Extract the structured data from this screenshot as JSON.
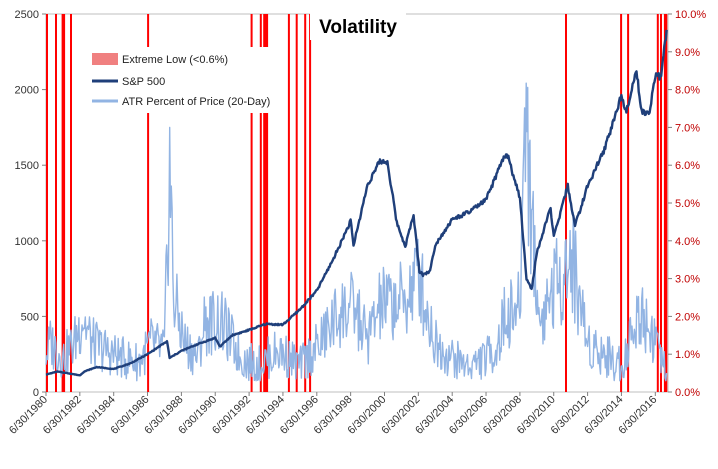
{
  "chart_data": {
    "type": "line",
    "title": "Volatility",
    "x_start": "1980-06-30",
    "x_end": "2017-03-31",
    "x_tick_labels": [
      "6/30/1980",
      "6/30/1982",
      "6/30/1984",
      "6/30/1986",
      "6/30/1988",
      "6/30/1990",
      "6/30/1992",
      "6/30/1994",
      "6/30/1996",
      "6/30/1998",
      "6/30/2000",
      "6/30/2002",
      "6/30/2004",
      "6/30/2006",
      "6/30/2008",
      "6/30/2010",
      "6/30/2012",
      "6/30/2014",
      "6/30/2016"
    ],
    "y_left": {
      "min": 0,
      "max": 2500,
      "ticks": [
        0,
        500,
        1000,
        1500,
        2000,
        2500
      ]
    },
    "y_right": {
      "min": 0,
      "max": 10,
      "ticks": [
        "0.0%",
        "1.0%",
        "2.0%",
        "3.0%",
        "4.0%",
        "5.0%",
        "6.0%",
        "7.0%",
        "8.0%",
        "9.0%",
        "10.0%"
      ]
    },
    "legend": [
      {
        "label": "Extreme Low (<0.6%)",
        "color": "#f08080",
        "kind": "box"
      },
      {
        "label": "S&P 500",
        "color": "#1f3f7a",
        "kind": "line"
      },
      {
        "label": "ATR Percent of Price (20-Day)",
        "color": "#92b4e3",
        "kind": "line"
      }
    ],
    "colors": {
      "extreme_low": "#ff0000",
      "sp500": "#1f3f7a",
      "atr": "#92b4e3",
      "right_axis": "#c00000"
    },
    "series": [
      {
        "name": "S&P 500",
        "axis": "left",
        "points": [
          [
            "1980-06-30",
            115
          ],
          [
            "1981-03-01",
            135
          ],
          [
            "1981-12-01",
            122
          ],
          [
            "1982-07-01",
            110
          ],
          [
            "1982-10-01",
            135
          ],
          [
            "1983-06-30",
            165
          ],
          [
            "1984-06-30",
            152
          ],
          [
            "1985-06-30",
            190
          ],
          [
            "1986-06-30",
            250
          ],
          [
            "1987-08-25",
            335
          ],
          [
            "1987-10-20",
            225
          ],
          [
            "1988-06-30",
            272
          ],
          [
            "1989-06-30",
            318
          ],
          [
            "1990-06-30",
            358
          ],
          [
            "1990-10-11",
            300
          ],
          [
            "1991-06-30",
            375
          ],
          [
            "1992-06-30",
            410
          ],
          [
            "1993-06-30",
            450
          ],
          [
            "1994-06-30",
            445
          ],
          [
            "1995-06-30",
            545
          ],
          [
            "1996-06-30",
            670
          ],
          [
            "1997-06-30",
            885
          ],
          [
            "1998-06-30",
            1130
          ],
          [
            "1998-09-01",
            970
          ],
          [
            "1999-06-30",
            1370
          ],
          [
            "2000-03-24",
            1527
          ],
          [
            "2000-09-01",
            1520
          ],
          [
            "2001-03-22",
            1120
          ],
          [
            "2001-09-21",
            965
          ],
          [
            "2002-03-19",
            1170
          ],
          [
            "2002-07-23",
            800
          ],
          [
            "2002-10-09",
            776
          ],
          [
            "2003-03-11",
            800
          ],
          [
            "2003-06-30",
            975
          ],
          [
            "2004-06-30",
            1140
          ],
          [
            "2005-06-30",
            1190
          ],
          [
            "2006-06-30",
            1270
          ],
          [
            "2007-07-16",
            1550
          ],
          [
            "2007-10-09",
            1565
          ],
          [
            "2008-06-30",
            1280
          ],
          [
            "2008-10-10",
            900
          ],
          [
            "2008-11-20",
            752
          ],
          [
            "2009-03-09",
            677
          ],
          [
            "2009-06-30",
            920
          ],
          [
            "2010-04-23",
            1217
          ],
          [
            "2010-07-02",
            1022
          ],
          [
            "2011-04-29",
            1363
          ],
          [
            "2011-10-03",
            1099
          ],
          [
            "2012-06-30",
            1362
          ],
          [
            "2013-06-30",
            1606
          ],
          [
            "2014-06-30",
            1960
          ],
          [
            "2014-10-15",
            1862
          ],
          [
            "2015-05-21",
            2131
          ],
          [
            "2015-08-25",
            1867
          ],
          [
            "2016-02-11",
            1829
          ],
          [
            "2016-06-30",
            2098
          ],
          [
            "2016-11-04",
            2085
          ],
          [
            "2017-03-01",
            2395
          ]
        ]
      },
      {
        "name": "ATR Percent of Price (20-Day)",
        "axis": "right",
        "points": [
          [
            "1980-06-30",
            1.0
          ],
          [
            "1980-10-01",
            1.3
          ],
          [
            "1981-06-30",
            0.9
          ],
          [
            "1982-03-01",
            1.3
          ],
          [
            "1982-09-01",
            2.0
          ],
          [
            "1983-03-01",
            1.3
          ],
          [
            "1984-01-01",
            1.1
          ],
          [
            "1985-01-01",
            0.9
          ],
          [
            "1986-01-01",
            0.8
          ],
          [
            "1986-09-15",
            1.3
          ],
          [
            "1987-06-30",
            1.1
          ],
          [
            "1987-10-22",
            6.0
          ],
          [
            "1988-01-15",
            2.5
          ],
          [
            "1988-09-01",
            1.3
          ],
          [
            "1989-06-30",
            0.9
          ],
          [
            "1989-10-20",
            1.8
          ],
          [
            "1990-08-25",
            1.9
          ],
          [
            "1991-01-15",
            1.7
          ],
          [
            "1992-01-01",
            0.9
          ],
          [
            "1993-01-01",
            0.7
          ],
          [
            "1994-04-01",
            1.1
          ],
          [
            "1995-06-30",
            0.7
          ],
          [
            "1996-07-15",
            1.2
          ],
          [
            "1997-10-28",
            2.1
          ],
          [
            "1998-09-01",
            2.2
          ],
          [
            "1999-06-30",
            1.4
          ],
          [
            "2000-04-14",
            2.3
          ],
          [
            "2001-09-21",
            2.4
          ],
          [
            "2002-07-24",
            3.2
          ],
          [
            "2002-10-15",
            2.5
          ],
          [
            "2003-06-30",
            1.3
          ],
          [
            "2004-06-30",
            0.9
          ],
          [
            "2005-06-30",
            0.7
          ],
          [
            "2006-06-30",
            0.9
          ],
          [
            "2007-03-01",
            1.2
          ],
          [
            "2007-08-16",
            2.0
          ],
          [
            "2008-06-30",
            2.2
          ],
          [
            "2008-10-27",
            8.0
          ],
          [
            "2009-03-09",
            4.5
          ],
          [
            "2009-09-01",
            1.8
          ],
          [
            "2010-05-20",
            2.7
          ],
          [
            "2011-08-08",
            3.5
          ],
          [
            "2012-06-30",
            1.3
          ],
          [
            "2013-06-30",
            1.0
          ],
          [
            "2014-06-30",
            0.7
          ],
          [
            "2015-08-24",
            2.2
          ],
          [
            "2016-02-11",
            1.7
          ],
          [
            "2016-06-27",
            1.5
          ],
          [
            "2016-11-01",
            0.8
          ],
          [
            "2017-03-01",
            0.5
          ]
        ]
      }
    ],
    "extreme_low_periods": [
      [
        "1980-06-30",
        "1980-07-20"
      ],
      [
        "1981-01-10",
        "1981-02-05"
      ],
      [
        "1981-06-01",
        "1981-08-15"
      ],
      [
        "1981-12-01",
        "1982-01-10"
      ],
      [
        "1986-06-20",
        "1986-07-10"
      ],
      [
        "1992-08-01",
        "1992-08-25"
      ],
      [
        "1993-02-15",
        "1993-03-10"
      ],
      [
        "1993-05-01",
        "1993-08-15"
      ],
      [
        "1994-10-15",
        "1994-11-10"
      ],
      [
        "1995-04-01",
        "1995-05-01"
      ],
      [
        "1995-10-01",
        "1995-10-30"
      ],
      [
        "1996-01-15",
        "1996-02-15"
      ],
      [
        "2011-03-01",
        "2011-03-25"
      ],
      [
        "2014-06-01",
        "2014-06-30"
      ],
      [
        "2014-10-30",
        "2014-11-20"
      ],
      [
        "2016-08-01",
        "2016-08-30"
      ],
      [
        "2016-10-10",
        "2016-11-05"
      ],
      [
        "2017-01-01",
        "2017-03-15"
      ]
    ]
  }
}
